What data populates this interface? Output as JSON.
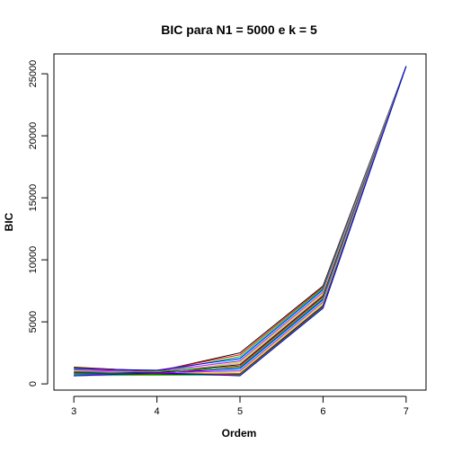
{
  "chart_data": {
    "type": "line",
    "title": "BIC para N1 = 5000 e k = 5",
    "xlabel": "Ordem",
    "ylabel": "BIC",
    "x": [
      3,
      4,
      5,
      6,
      7
    ],
    "xlim": [
      2.76,
      7.24
    ],
    "ylim": [
      -500,
      26600
    ],
    "xticks": [
      3,
      4,
      5,
      6,
      7
    ],
    "yticks": [
      0,
      5000,
      10000,
      15000,
      20000,
      25000
    ],
    "grid": false,
    "legend": "none",
    "palette": [
      "#000000",
      "#ff0000",
      "#00cd00",
      "#0000ff",
      "#00ffff",
      "#ff00ff",
      "#dddd00",
      "#bebebe"
    ],
    "series": [
      {
        "values": [
          1350,
          1000,
          2500,
          7900,
          25600
        ]
      },
      {
        "values": [
          1300,
          1050,
          2350,
          7800,
          25600
        ]
      },
      {
        "values": [
          1250,
          950,
          2200,
          7700,
          25600
        ]
      },
      {
        "values": [
          1200,
          1100,
          2050,
          7600,
          25600
        ]
      },
      {
        "values": [
          1150,
          900,
          1950,
          7500,
          25600
        ]
      },
      {
        "values": [
          1100,
          1000,
          1850,
          7400,
          25600
        ]
      },
      {
        "values": [
          1050,
          850,
          1750,
          7300,
          25600
        ]
      },
      {
        "values": [
          1000,
          950,
          1650,
          7200,
          25600
        ]
      },
      {
        "values": [
          950,
          900,
          1550,
          7100,
          25600
        ]
      },
      {
        "values": [
          900,
          800,
          1450,
          7000,
          25600
        ]
      },
      {
        "values": [
          850,
          1000,
          1350,
          6900,
          25600
        ]
      },
      {
        "values": [
          800,
          850,
          1250,
          6800,
          25600
        ]
      },
      {
        "values": [
          750,
          750,
          1150,
          6700,
          25600
        ]
      },
      {
        "values": [
          700,
          900,
          1050,
          6600,
          25600
        ]
      },
      {
        "values": [
          700,
          800,
          950,
          6500,
          25600
        ]
      },
      {
        "values": [
          650,
          700,
          850,
          6400,
          25600
        ]
      },
      {
        "values": [
          700,
          750,
          800,
          6300,
          25600
        ]
      },
      {
        "values": [
          650,
          850,
          750,
          6200,
          25600
        ]
      },
      {
        "values": [
          700,
          700,
          700,
          6150,
          25600
        ]
      },
      {
        "values": [
          650,
          900,
          650,
          6100,
          25600
        ]
      }
    ]
  }
}
